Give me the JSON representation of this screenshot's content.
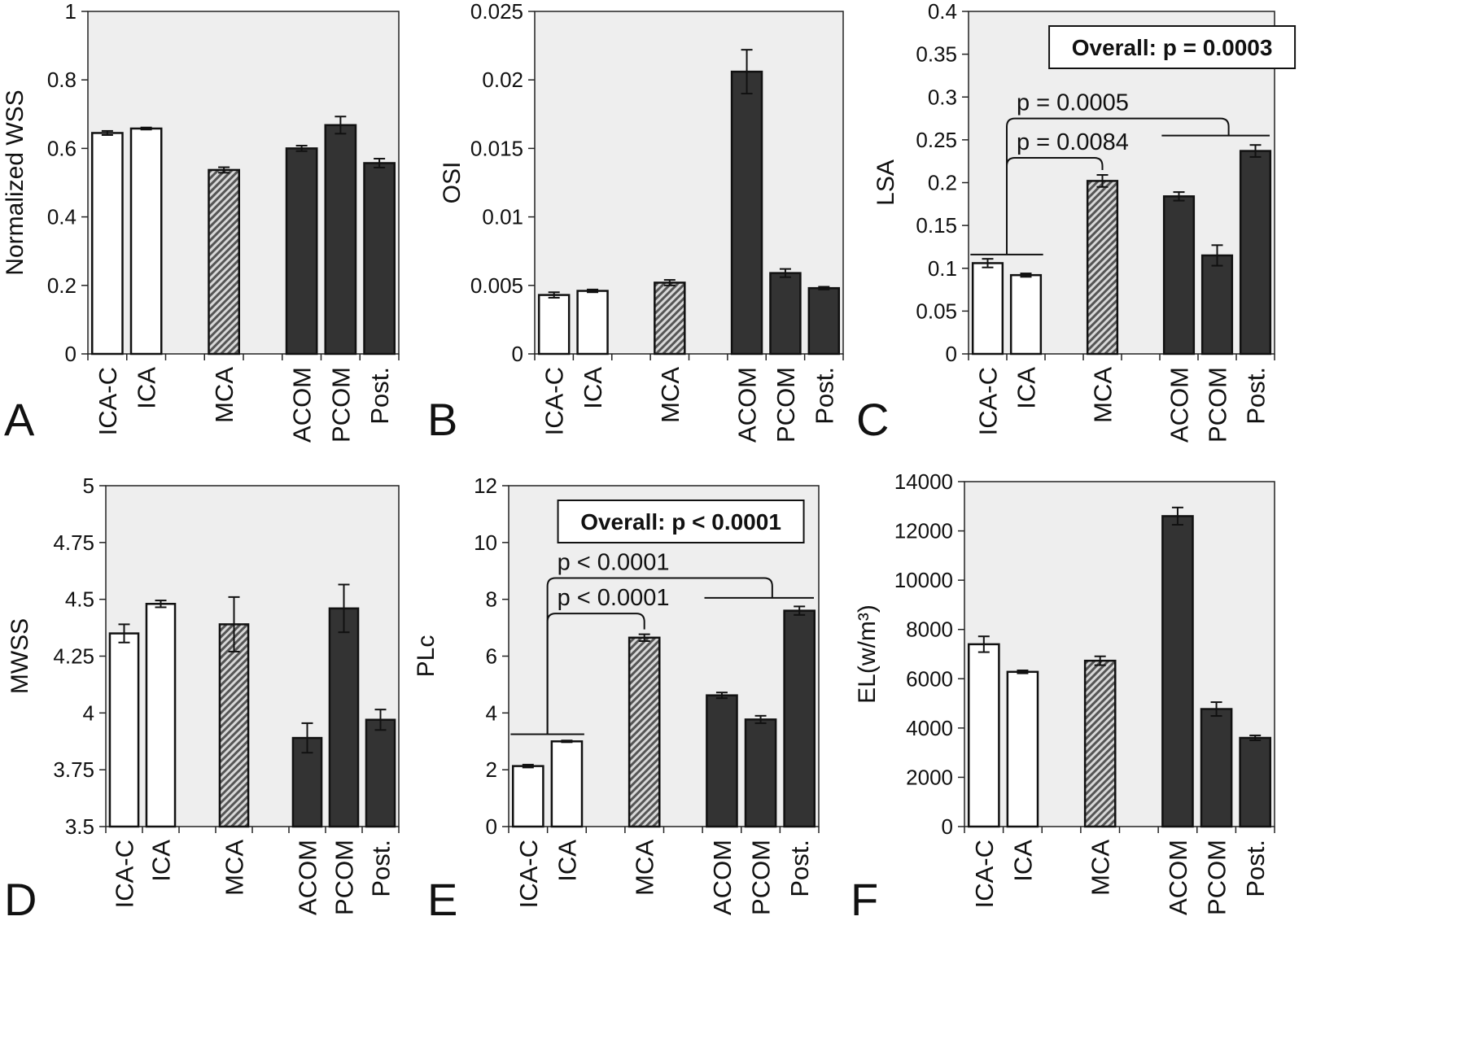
{
  "figure": {
    "categories": [
      "ICA-C",
      "ICA",
      "MCA",
      "ACOM",
      "PCOM",
      "Post."
    ],
    "colors": {
      "panel_bg": "#eeeeee",
      "bar_white": "#ffffff",
      "bar_dark": "#333333",
      "hatch_fg": "#555555",
      "hatch_bg": "#d8d8d8",
      "axis": "#222222"
    }
  },
  "chart_data": [
    {
      "panel": "A",
      "type": "bar",
      "categories": [
        "ICA-C",
        "ICA",
        "MCA",
        "ACOM",
        "PCOM",
        "Post."
      ],
      "values": [
        0.645,
        0.658,
        0.537,
        0.6,
        0.668,
        0.557
      ],
      "errors": [
        0.006,
        0.003,
        0.008,
        0.008,
        0.025,
        0.013
      ],
      "ylabel": "Normalized WSS",
      "ylim": [
        0,
        1
      ],
      "ticks": [
        0,
        0.2,
        0.4,
        0.6,
        0.8,
        1
      ],
      "tick_labels": [
        "0",
        "0.2",
        "0.4",
        "0.6",
        "0.8",
        "1"
      ],
      "overall": "",
      "brackets": []
    },
    {
      "panel": "B",
      "type": "bar",
      "categories": [
        "ICA-C",
        "ICA",
        "MCA",
        "ACOM",
        "PCOM",
        "Post."
      ],
      "values": [
        0.0043,
        0.0046,
        0.0052,
        0.0206,
        0.0059,
        0.0048
      ],
      "errors": [
        0.0002,
        0.0001,
        0.0002,
        0.0016,
        0.0003,
        0.0001
      ],
      "ylabel": "OSI",
      "ylim": [
        0,
        0.025
      ],
      "ticks": [
        0,
        0.005,
        0.01,
        0.015,
        0.02,
        0.025
      ],
      "tick_labels": [
        "0",
        "0.005",
        "0.01",
        "0.015",
        "0.02",
        "0.025"
      ],
      "overall": "",
      "brackets": []
    },
    {
      "panel": "C",
      "type": "bar",
      "categories": [
        "ICA-C",
        "ICA",
        "MCA",
        "ACOM",
        "PCOM",
        "Post."
      ],
      "values": [
        0.106,
        0.092,
        0.202,
        0.184,
        0.115,
        0.237
      ],
      "errors": [
        0.005,
        0.002,
        0.007,
        0.005,
        0.012,
        0.007
      ],
      "ylabel": "LSA",
      "ylim": [
        0,
        0.4
      ],
      "ticks": [
        0,
        0.05,
        0.1,
        0.15,
        0.2,
        0.25,
        0.3,
        0.35,
        0.4
      ],
      "tick_labels": [
        "0",
        "0.05",
        "0.1",
        "0.15",
        "0.2",
        "0.25",
        "0.3",
        "0.35",
        "0.4"
      ],
      "overall": "Overall: p = 0.0003",
      "group_line_y": 0.116,
      "brackets": [
        {
          "label": "p = 0.0084",
          "y": 0.229,
          "target": "MCA"
        },
        {
          "label": "p = 0.0005",
          "y": 0.275,
          "target": "group",
          "target_y": 0.255
        }
      ]
    },
    {
      "panel": "D",
      "type": "bar",
      "categories": [
        "ICA-C",
        "ICA",
        "MCA",
        "ACOM",
        "PCOM",
        "Post."
      ],
      "values": [
        4.35,
        4.48,
        4.39,
        3.89,
        4.46,
        3.97
      ],
      "errors": [
        0.04,
        0.015,
        0.12,
        0.065,
        0.105,
        0.045
      ],
      "ylabel": "MWSS",
      "ylim": [
        3.5,
        5
      ],
      "ticks": [
        3.5,
        3.75,
        4,
        4.25,
        4.5,
        4.75,
        5
      ],
      "tick_labels": [
        "3.5",
        "3.75",
        "4",
        "4.25",
        "4.5",
        "4.75",
        "5"
      ],
      "overall": "",
      "brackets": []
    },
    {
      "panel": "E",
      "type": "bar",
      "categories": [
        "ICA-C",
        "ICA",
        "MCA",
        "ACOM",
        "PCOM",
        "Post."
      ],
      "values": [
        2.13,
        3.0,
        6.65,
        4.62,
        3.77,
        7.6
      ],
      "errors": [
        0.05,
        0.03,
        0.12,
        0.1,
        0.13,
        0.15
      ],
      "ylabel": "PLc",
      "ylim": [
        0,
        12
      ],
      "ticks": [
        0,
        2,
        4,
        6,
        8,
        10,
        12
      ],
      "tick_labels": [
        "0",
        "2",
        "4",
        "6",
        "8",
        "10",
        "12"
      ],
      "overall": "Overall: p < 0.0001",
      "group_line_y": 3.25,
      "brackets": [
        {
          "label": "p < 0.0001",
          "y": 7.5,
          "target": "MCA"
        },
        {
          "label": "p < 0.0001",
          "y": 8.75,
          "target": "group",
          "target_y": 8.05
        }
      ]
    },
    {
      "panel": "F",
      "type": "bar",
      "categories": [
        "ICA-C",
        "ICA",
        "MCA",
        "ACOM",
        "PCOM",
        "Post."
      ],
      "values": [
        7400,
        6280,
        6730,
        12600,
        4770,
        3600
      ],
      "errors": [
        320,
        60,
        180,
        350,
        280,
        100
      ],
      "ylabel": "EL(w/m³)",
      "ylim": [
        0,
        14000
      ],
      "ticks": [
        0,
        2000,
        4000,
        6000,
        8000,
        10000,
        12000,
        14000
      ],
      "tick_labels": [
        "0",
        "2000",
        "4000",
        "6000",
        "8000",
        "10000",
        "12000",
        "14000"
      ],
      "overall": "",
      "brackets": []
    }
  ]
}
